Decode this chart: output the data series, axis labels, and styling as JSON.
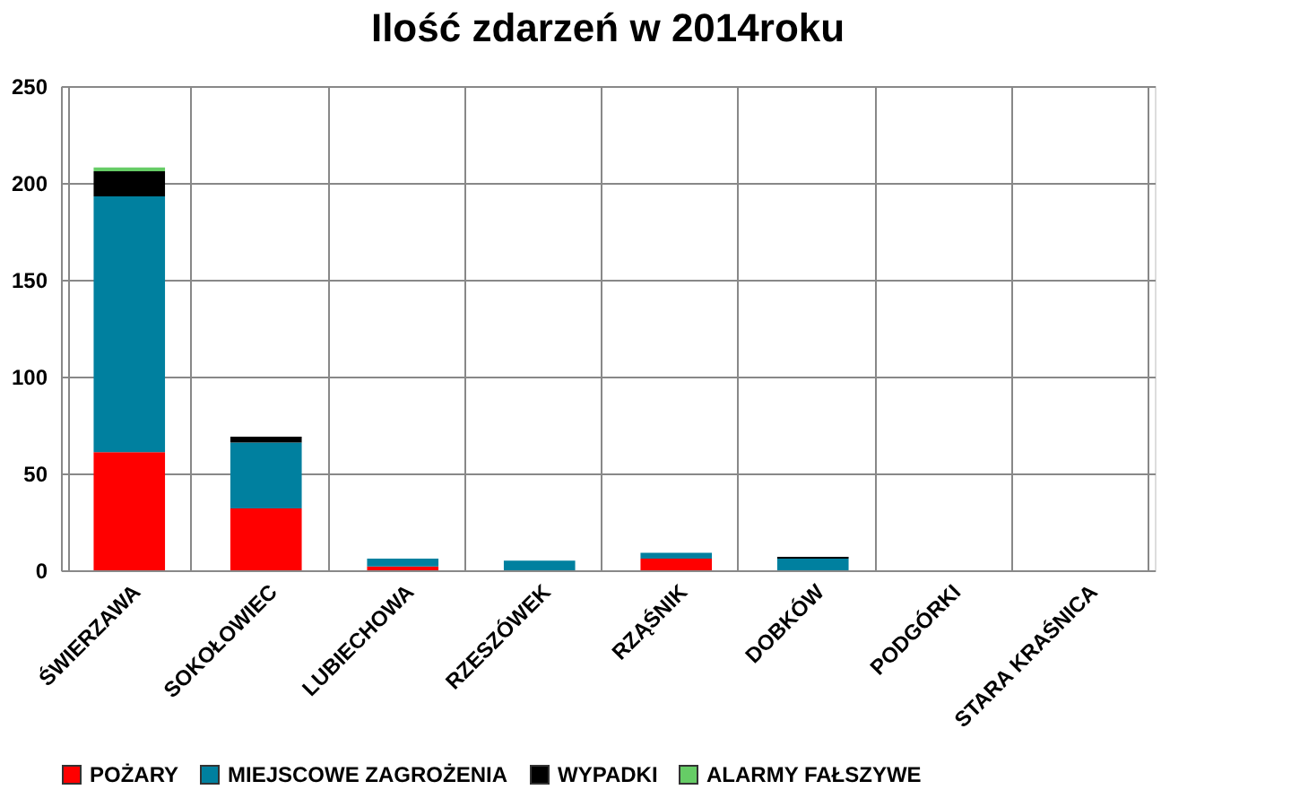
{
  "chart_data": {
    "type": "bar",
    "title": "Ilość zdarzeń w 2014roku",
    "stacked": true,
    "categories": [
      "ŚWIERZAWA",
      "SOKOŁOWIEC",
      "LUBIECHOWA",
      "RZESZÓWEK",
      "RZĄŚNIK",
      "DOBKÓW",
      "PODGÓRKI",
      "STARA KRAŚNICA"
    ],
    "series": [
      {
        "name": "POŻARY",
        "color": "#ff0000",
        "values": [
          61,
          32,
          2,
          0,
          6,
          0,
          0,
          0
        ]
      },
      {
        "name": "MIEJSCOWE ZAGROŻENIA",
        "color": "#00809f",
        "values": [
          132,
          34,
          4,
          5,
          3,
          6,
          0,
          0
        ]
      },
      {
        "name": "WYPADKI",
        "color": "#000000",
        "values": [
          13,
          3,
          0,
          0,
          0,
          1,
          0,
          0
        ]
      },
      {
        "name": "ALARMY FAŁSZYWE",
        "color": "#66cc66",
        "values": [
          2,
          0,
          0,
          0,
          0,
          0,
          0,
          0
        ]
      }
    ],
    "ylim": [
      0,
      250
    ],
    "yticks": [
      0,
      50,
      100,
      150,
      200,
      250
    ],
    "grid": true,
    "legend": "bottom"
  }
}
